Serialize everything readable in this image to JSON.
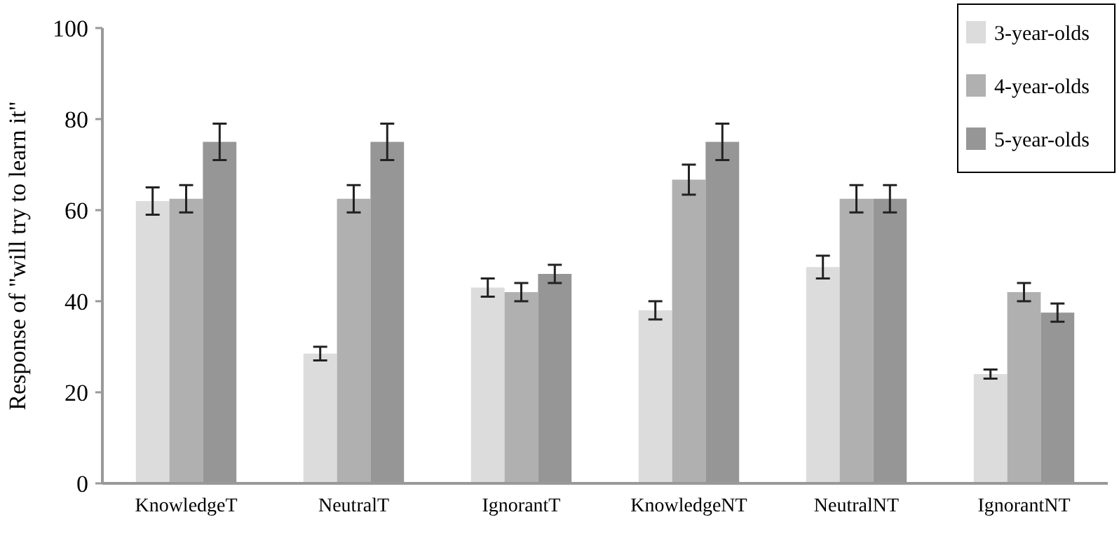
{
  "chart_data": {
    "type": "bar",
    "ylabel": "Response of \"will try to learn it\"",
    "categories": [
      "KnowledgeT",
      "NeutralT",
      "IgnorantT",
      "KnowledgeNT",
      "NeutralNT",
      "IgnorantNT"
    ],
    "series": [
      {
        "name": "3-year-olds",
        "color": "#dcdcdc",
        "values": [
          62,
          28.5,
          43,
          38,
          47.5,
          24
        ],
        "errors": [
          3,
          1.5,
          2,
          2,
          2.5,
          1
        ]
      },
      {
        "name": "4-year-olds",
        "color": "#b0b0b0",
        "values": [
          62.5,
          62.5,
          42,
          66.7,
          62.5,
          42
        ],
        "errors": [
          3,
          3,
          2,
          3.3,
          3,
          2
        ]
      },
      {
        "name": "5-year-olds",
        "color": "#969696",
        "values": [
          75,
          75,
          46,
          75,
          62.5,
          37.5
        ],
        "errors": [
          4,
          4,
          2,
          4,
          3,
          2
        ]
      }
    ],
    "ylim": [
      0,
      100
    ],
    "yticks": [
      0,
      20,
      40,
      60,
      80,
      100
    ],
    "grid": false,
    "legend": "top right"
  }
}
